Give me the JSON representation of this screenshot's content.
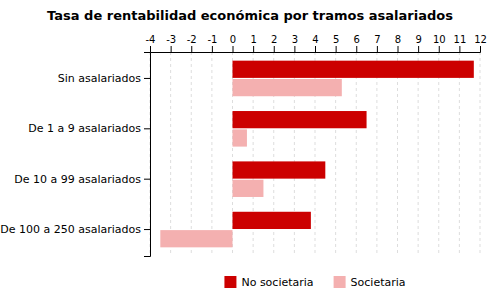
{
  "chart_data": {
    "type": "bar",
    "orientation": "horizontal",
    "title": "Tasa de rentabilidad económica por tramos asalariados",
    "categories": [
      "Sin asalariados",
      "De 1 a 9 asalariados",
      "De 10 a 99 asalariados",
      "De 100 a 250 asalariados"
    ],
    "series": [
      {
        "name": "No societaria",
        "color": "#cc0000",
        "values": [
          11.7,
          6.5,
          4.5,
          3.8
        ]
      },
      {
        "name": "Societaria",
        "color": "#f4b0b0",
        "values": [
          5.3,
          0.7,
          1.5,
          -3.5
        ]
      }
    ],
    "xlim": [
      -4,
      12
    ],
    "xticks": [
      -4,
      -3,
      -2,
      -1,
      0,
      1,
      2,
      3,
      4,
      5,
      6,
      7,
      8,
      9,
      10,
      11,
      12
    ],
    "grid": true,
    "legend": "bottom"
  }
}
